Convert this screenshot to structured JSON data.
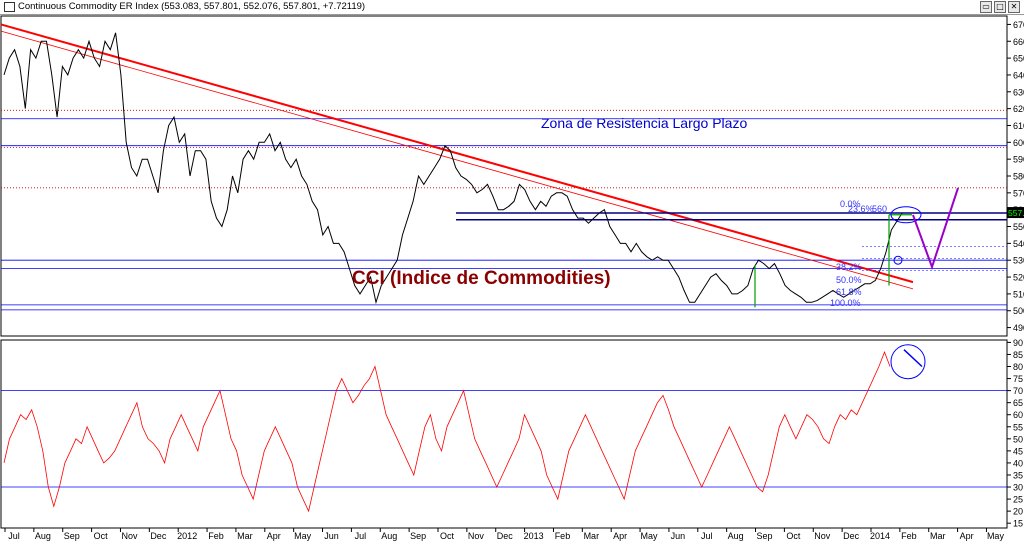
{
  "window": {
    "title": "Continuous Commodity ER Index",
    "ohlc": "(553.083, 557.801, 552.076, 557.801, +7.72119)",
    "controls": [
      "▭",
      "□",
      "✕"
    ]
  },
  "chart_data": [
    {
      "type": "line",
      "name": "price-panel",
      "y_ticks": [
        490,
        500,
        510,
        520,
        530,
        540,
        550,
        560,
        570,
        580,
        590,
        600,
        610,
        620,
        630,
        640,
        650,
        660,
        670
      ],
      "ylim": [
        485,
        675
      ],
      "last_price_label": "557.80",
      "annotations": {
        "main_title": "CCI (Indice de Commodities)",
        "zone_label": "Zona de Resistencia Largo Plazo",
        "fib_0": "0.0%",
        "fib_236": "23.6%",
        "fib_382": "38.2%",
        "fib_500": "50.0%",
        "fib_618": "61.8%",
        "fib_1000": "100.0%",
        "fib_560": "560"
      },
      "horizontal_levels": [
        500.5,
        503.5,
        525,
        530,
        598,
        614
      ],
      "dotted_levels": [
        597,
        573,
        619
      ],
      "x_labels": [
        "Jul",
        "Aug",
        "Sep",
        "Oct",
        "Nov",
        "Dec",
        "2012",
        "Feb",
        "Mar",
        "Apr",
        "May",
        "Jun",
        "Jul",
        "Aug",
        "Sep",
        "Oct",
        "Nov",
        "Dec",
        "2013",
        "Feb",
        "Mar",
        "Apr",
        "May",
        "Jun",
        "Jul",
        "Aug",
        "Sep",
        "Oct",
        "Nov",
        "Dec",
        "2014",
        "Feb",
        "Mar",
        "Apr",
        "May"
      ],
      "series": [
        {
          "values": [
            640,
            650,
            655,
            645,
            620,
            655,
            650,
            660,
            660,
            640,
            615,
            645,
            640,
            650,
            655,
            650,
            660,
            650,
            645,
            660,
            655,
            665,
            640,
            600,
            585,
            580,
            590,
            590,
            580,
            570,
            595,
            610,
            615,
            600,
            605,
            580,
            595,
            595,
            590,
            565,
            555,
            550,
            560,
            580,
            570,
            590,
            595,
            590,
            600,
            600,
            605,
            595,
            600,
            590,
            585,
            590,
            580,
            575,
            565,
            560,
            545,
            550,
            540,
            540,
            535,
            525,
            515,
            510,
            515,
            520,
            505,
            515,
            520,
            525,
            530,
            545,
            555,
            565,
            580,
            575,
            580,
            585,
            590,
            598,
            595,
            585,
            580,
            578,
            575,
            570,
            572,
            575,
            568,
            560,
            560,
            562,
            565,
            575,
            572,
            565,
            560,
            565,
            562,
            568,
            570,
            570,
            568,
            560,
            555,
            555,
            552,
            555,
            558,
            560,
            550,
            545,
            540,
            540,
            535,
            540,
            535,
            532,
            530,
            532,
            530,
            530,
            525,
            520,
            512,
            505,
            505,
            510,
            515,
            520,
            522,
            518,
            515,
            510,
            510,
            512,
            515,
            525,
            530,
            528,
            525,
            528,
            522,
            515,
            512,
            510,
            508,
            505,
            505,
            506,
            508,
            510,
            512,
            510,
            508,
            510,
            512,
            514,
            516,
            516,
            518,
            525,
            535,
            548,
            553,
            557.8
          ]
        },
        {
          "name": "trend-upper",
          "values": [
            670,
            517
          ]
        },
        {
          "name": "trend-lower",
          "values": [
            666,
            513
          ]
        }
      ]
    },
    {
      "type": "line",
      "name": "oscillator-panel",
      "y_ticks": [
        15,
        20,
        25,
        30,
        35,
        40,
        45,
        50,
        55,
        60,
        65,
        70,
        75,
        80,
        85,
        90
      ],
      "ylim": [
        13,
        91
      ],
      "horizontal_levels": [
        30,
        70
      ],
      "series": [
        {
          "values": [
            40,
            50,
            55,
            60,
            58,
            62,
            55,
            45,
            30,
            22,
            30,
            40,
            45,
            50,
            48,
            55,
            50,
            45,
            40,
            42,
            45,
            50,
            55,
            60,
            65,
            55,
            50,
            48,
            45,
            40,
            50,
            55,
            60,
            55,
            50,
            45,
            55,
            60,
            65,
            70,
            60,
            50,
            45,
            35,
            30,
            25,
            35,
            45,
            50,
            55,
            50,
            45,
            40,
            30,
            25,
            20,
            30,
            40,
            50,
            60,
            70,
            75,
            70,
            65,
            68,
            72,
            75,
            80,
            70,
            60,
            55,
            50,
            45,
            40,
            35,
            45,
            55,
            60,
            50,
            45,
            55,
            60,
            65,
            70,
            60,
            50,
            45,
            40,
            35,
            30,
            35,
            40,
            45,
            50,
            60,
            55,
            50,
            45,
            35,
            30,
            25,
            35,
            45,
            50,
            55,
            60,
            55,
            50,
            45,
            40,
            35,
            30,
            25,
            35,
            45,
            50,
            55,
            60,
            65,
            68,
            62,
            55,
            50,
            45,
            40,
            35,
            30,
            35,
            40,
            45,
            50,
            55,
            50,
            45,
            40,
            35,
            30,
            28,
            35,
            45,
            55,
            60,
            55,
            50,
            55,
            60,
            58,
            55,
            50,
            48,
            55,
            60,
            58,
            62,
            60,
            65,
            70,
            75,
            80,
            86,
            80
          ]
        }
      ]
    }
  ],
  "colors": {
    "price_line": "#000000",
    "oscillator_line": "#ff0000",
    "trendline": "#ff0000",
    "level_line": "#0000ff",
    "dotted_level": "#c00000",
    "main_title": "#8b0000",
    "zone_label": "#0000cc",
    "fib_text": "#3333ff",
    "green_marker": "#00a000",
    "purple_forecast": "#9900cc",
    "last_price_bg": "#000000",
    "last_price_fg": "#00ff00"
  }
}
